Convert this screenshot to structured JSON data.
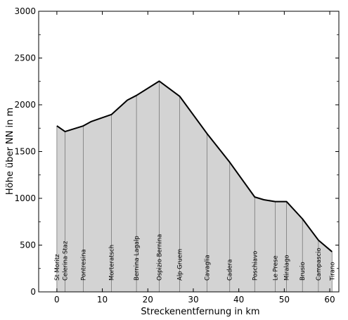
{
  "chart_data": {
    "type": "area",
    "title": "",
    "xlabel": "Streckenentfernung in km",
    "ylabel": "Höhe über NN in m",
    "xlim": [
      -4,
      62
    ],
    "ylim": [
      0,
      3000
    ],
    "xticks": [
      0,
      10,
      20,
      30,
      40,
      50,
      60
    ],
    "yticks": [
      0,
      500,
      1000,
      1500,
      2000,
      2500,
      3000
    ],
    "grid": false,
    "fill_color": "#d3d3d3",
    "line_color": "#000000",
    "profile": [
      {
        "x": 0,
        "y": 1775
      },
      {
        "x": 1.8,
        "y": 1714
      },
      {
        "x": 5.8,
        "y": 1774
      },
      {
        "x": 7.5,
        "y": 1820
      },
      {
        "x": 12,
        "y": 1896
      },
      {
        "x": 15.5,
        "y": 2050
      },
      {
        "x": 17.5,
        "y": 2100
      },
      {
        "x": 22.5,
        "y": 2253
      },
      {
        "x": 27,
        "y": 2091
      },
      {
        "x": 33,
        "y": 1693
      },
      {
        "x": 38,
        "y": 1386
      },
      {
        "x": 43.5,
        "y": 1014
      },
      {
        "x": 45.5,
        "y": 985
      },
      {
        "x": 48,
        "y": 965
      },
      {
        "x": 50.5,
        "y": 965
      },
      {
        "x": 54,
        "y": 780
      },
      {
        "x": 57.5,
        "y": 553
      },
      {
        "x": 60.5,
        "y": 429
      }
    ],
    "stations": [
      {
        "name": "St Moritz",
        "x": 0
      },
      {
        "name": "Celerina Staz",
        "x": 1.8
      },
      {
        "name": "Pontresina",
        "x": 5.8
      },
      {
        "name": "Morteratsch",
        "x": 12
      },
      {
        "name": "Bernina Lagalp",
        "x": 17.5
      },
      {
        "name": "Ospizio Bernina",
        "x": 22.5
      },
      {
        "name": "Alp Gruem",
        "x": 27
      },
      {
        "name": "Cavaglia",
        "x": 33
      },
      {
        "name": "Cadera",
        "x": 38
      },
      {
        "name": "Poschiavo",
        "x": 43.5
      },
      {
        "name": "Le Prese",
        "x": 48
      },
      {
        "name": "Miralago",
        "x": 50.5
      },
      {
        "name": "Brusio",
        "x": 54
      },
      {
        "name": "Campascio",
        "x": 57.5
      },
      {
        "name": "Tirano",
        "x": 60.5
      }
    ]
  }
}
